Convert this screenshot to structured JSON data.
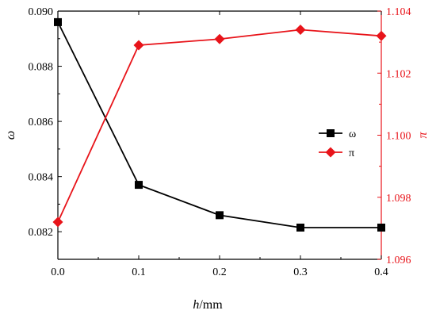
{
  "chart_data": {
    "type": "line",
    "x": [
      0.0,
      0.1,
      0.2,
      0.3,
      0.4
    ],
    "x_tick_labels": [
      "0.0",
      "0.1",
      "0.2",
      "0.3",
      "0.4"
    ],
    "xlim": [
      0.0,
      0.4
    ],
    "xlabel_var": "h",
    "xlabel_unit": "/mm",
    "ylabel_left": "ω",
    "ylabel_right": "π",
    "ylim_left": [
      0.081,
      0.09
    ],
    "ylim_right": [
      1.096,
      1.104
    ],
    "y_left_ticks": [
      0.082,
      0.084,
      0.086,
      0.088,
      0.09
    ],
    "y_left_tick_labels": [
      "0.082",
      "0.084",
      "0.086",
      "0.088",
      "0.090"
    ],
    "y_right_ticks": [
      1.096,
      1.098,
      1.1,
      1.102,
      1.104
    ],
    "y_right_tick_labels": [
      "1.096",
      "1.098",
      "1.100",
      "1.102",
      "1.104"
    ],
    "legend_position": "right-middle",
    "series": [
      {
        "name": "ω",
        "axis": "left",
        "color": "#000000",
        "marker": "square",
        "values": [
          0.0896,
          0.0837,
          0.0826,
          0.08215,
          0.08215
        ]
      },
      {
        "name": "π",
        "axis": "right",
        "color": "#e8141a",
        "marker": "diamond",
        "values": [
          1.0972,
          1.1029,
          1.1031,
          1.1034,
          1.1032
        ]
      }
    ],
    "left_axis_color": "#000000",
    "right_axis_color": "#e8141a"
  }
}
